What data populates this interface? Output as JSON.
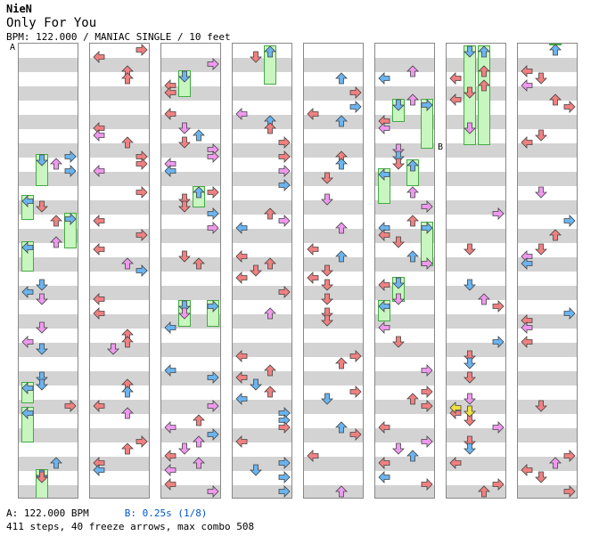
{
  "header": {
    "artist": "NieN",
    "title": "Only For You",
    "meta": "BPM: 122.000 / MANIAC SINGLE / 10 feet"
  },
  "markers": {
    "a": "A",
    "b": "B"
  },
  "footer": {
    "bpm_a": "A: 122.000 BPM",
    "bpm_b": "B: 0.25s (1/8)",
    "summary": "411 steps, 40 freeze arrows, max combo 508"
  },
  "colors": {
    "red": "#f08080",
    "blue": "#6ab4f0",
    "violet": "#ee99ee",
    "yellow": "#f0e040",
    "freeze": "#c8f5c0",
    "stripe": "#d3d3d3"
  },
  "chart_data": {
    "type": "table",
    "lanes": [
      "left",
      "down",
      "up",
      "right"
    ],
    "columns": 8,
    "beats_per_column": 16
  }
}
